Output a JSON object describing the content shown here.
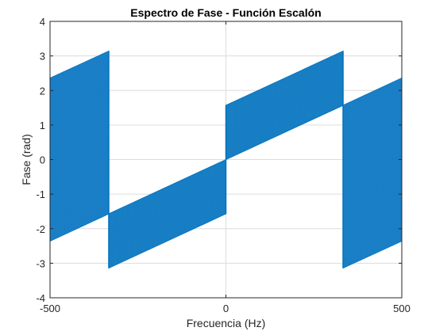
{
  "chart_data": {
    "type": "line",
    "title": "Espectro de Fase - Función Escalón",
    "xlabel": "Frecuencia (Hz)",
    "ylabel": "Fase (rad)",
    "xlim": [
      -500,
      500
    ],
    "ylim": [
      -4,
      4
    ],
    "xticks": [
      -500,
      0,
      500
    ],
    "yticks": [
      -4,
      -3,
      -2,
      -1,
      0,
      1,
      2,
      3,
      4
    ],
    "xtick_labels": [
      "-500",
      "0",
      "500"
    ],
    "ytick_labels": [
      "-4",
      "-3",
      "-2",
      "-1",
      "0",
      "1",
      "2",
      "3",
      "4"
    ],
    "grid": true,
    "legend": "none",
    "series_color": "#0072BD",
    "series": [
      {
        "style": "dense oscillating fill between lower and upper envelopes",
        "segments": [
          {
            "x": [
              -500,
              -333
            ],
            "lower": [
              -2.36,
              -1.57
            ],
            "upper": [
              2.36,
              3.14
            ]
          },
          {
            "x": [
              -333,
              0
            ],
            "lower": [
              -3.14,
              -1.57
            ],
            "upper": [
              -1.57,
              0
            ]
          },
          {
            "x": [
              0,
              333
            ],
            "lower": [
              0,
              1.57
            ],
            "upper": [
              1.57,
              3.14
            ]
          },
          {
            "x": [
              333,
              500
            ],
            "lower": [
              -3.14,
              -2.36
            ],
            "upper": [
              1.57,
              2.36
            ]
          }
        ]
      }
    ]
  }
}
